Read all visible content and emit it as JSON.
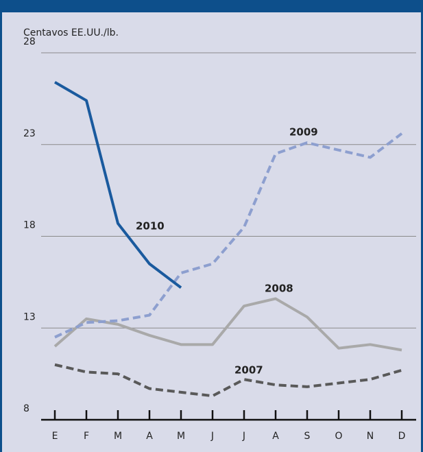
{
  "chart_data": {
    "type": "line",
    "ylabel": "Centavos EE.UU./lb.",
    "categories": [
      "E",
      "F",
      "M",
      "A",
      "M",
      "J",
      "J",
      "A",
      "S",
      "O",
      "N",
      "D"
    ],
    "ylim": [
      8,
      28
    ],
    "yticks": [
      8,
      13,
      18,
      23,
      28
    ],
    "grid": true,
    "series": [
      {
        "name": "2010",
        "color": "#1a5a9e",
        "dashed": false,
        "values": [
          26.4,
          25.4,
          18.7,
          16.5,
          15.2,
          null,
          null,
          null,
          null,
          null,
          null,
          null
        ]
      },
      {
        "name": "2009",
        "color": "#8d9fcf",
        "dashed": true,
        "values": [
          12.5,
          13.3,
          13.4,
          13.7,
          16.0,
          16.5,
          18.5,
          22.5,
          23.1,
          22.7,
          22.3,
          23.6
        ]
      },
      {
        "name": "2008",
        "color": "#a9a9a9",
        "dashed": false,
        "values": [
          12.0,
          13.5,
          13.2,
          12.6,
          12.1,
          12.1,
          14.2,
          14.6,
          13.6,
          11.9,
          12.1,
          11.8
        ]
      },
      {
        "name": "2007",
        "color": "#595959",
        "dashed": true,
        "values": [
          11.0,
          10.6,
          10.5,
          9.7,
          9.5,
          9.3,
          10.2,
          9.9,
          9.8,
          10.0,
          10.2,
          10.7
        ]
      }
    ]
  }
}
